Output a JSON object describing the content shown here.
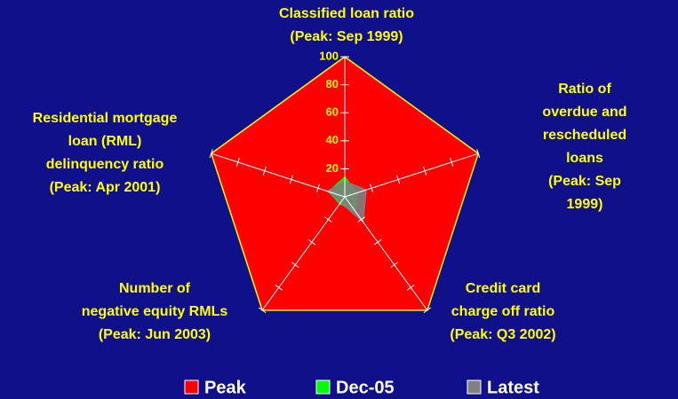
{
  "chart_data": {
    "type": "radar",
    "categories": [
      "Classified loan ratio\n(Peak: Sep 1999)",
      "Ratio of overdue and\nrescheduled loans\n(Peak: Sep 1999)",
      "Credit card\ncharge off ratio\n(Peak: Q3 2002)",
      "Number of\nnegative equity RMLs\n(Peak: Jun 2003)",
      "Residential mortgage\nloan (RML)\ndelinquency ratio\n(Peak: Apr 2001)"
    ],
    "series": [
      {
        "name": "Peak",
        "color": "#ff0000",
        "values": [
          100,
          100,
          100,
          100,
          100
        ]
      },
      {
        "name": "Dec-05",
        "color": "#00ff00",
        "values": [
          14,
          9,
          13,
          6,
          12
        ]
      },
      {
        "name": "Latest",
        "color": "#808080",
        "values": [
          11,
          16,
          22,
          5,
          13
        ]
      }
    ],
    "ylim": [
      0,
      100
    ],
    "yticks": [
      20,
      40,
      60,
      80,
      100
    ],
    "legend": "bottom"
  }
}
